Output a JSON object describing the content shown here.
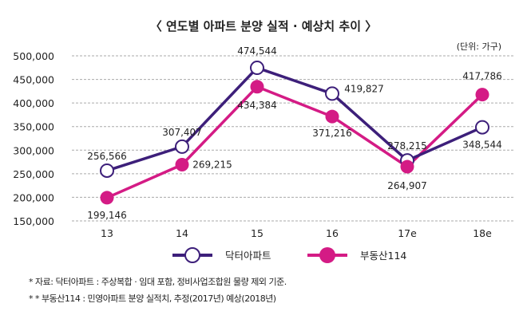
{
  "chart_data": {
    "type": "line",
    "title": "〈 연도별 아파트 분양 실적 · 예상치 추이 〉",
    "unit_label": "(단위: 가구)",
    "categories": [
      "13",
      "14",
      "15",
      "16",
      "17e",
      "18e"
    ],
    "ylim": [
      150000,
      500000
    ],
    "yticks": [
      "500,000",
      "450,000",
      "400,000",
      "350,000",
      "300,000",
      "250,000",
      "200,000",
      "150,000"
    ],
    "ytick_values": [
      500000,
      450000,
      400000,
      350000,
      300000,
      250000,
      200000,
      150000
    ],
    "grid": true,
    "legend_position": "bottom",
    "series": [
      {
        "name": "닥터아파트",
        "color": "#3d1f7a",
        "marker": "open-circle",
        "values": [
          256566,
          307407,
          474544,
          419827,
          278215,
          348544
        ],
        "labels": [
          "256,566",
          "307,407",
          "474,544",
          "419,827",
          "278,215",
          "348,544"
        ]
      },
      {
        "name": "부동산114",
        "color": "#d41b85",
        "marker": "filled-circle",
        "values": [
          199146,
          269215,
          434384,
          371216,
          264907,
          417786
        ],
        "labels": [
          "199,146",
          "269,215",
          "434,384",
          "371,216",
          "264,907",
          "417,786"
        ]
      }
    ]
  },
  "notes": [
    "* 자료: 닥터아파트 : 주상복합 · 임대 포함, 정비사업조합원 물량 제외 기준.",
    "* * 부동산114 : 민영아파트 분양 실적치, 추정(2017년) 예상(2018년)"
  ]
}
